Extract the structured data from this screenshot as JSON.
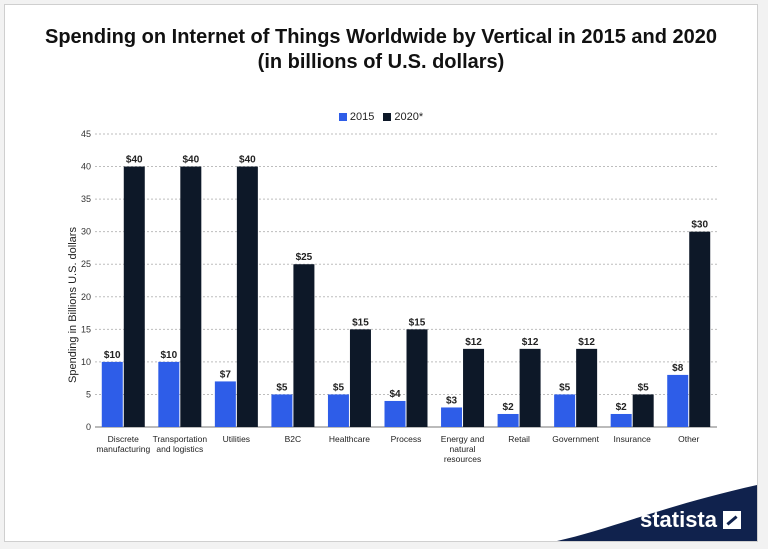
{
  "title_line1": "Spending on Internet of Things Worldwide by Vertical in 2015 and 2020",
  "title_line2": "(in billions of U.S. dollars)",
  "brand": "statista",
  "colors": {
    "series_2015": "#2e5de8",
    "series_2020": "#0d1828",
    "brand_band": "#10224d"
  },
  "icons": {
    "brand_logo": "statista-logo-icon"
  },
  "chart_data": {
    "type": "bar",
    "title": "Spending on Internet of Things Worldwide by Vertical in 2015 and 2020 (in billions of U.S. dollars)",
    "ylabel": "Spending in Billions U.S. dollars",
    "xlabel": "",
    "ylim": [
      0,
      45
    ],
    "yticks": [
      0,
      5,
      10,
      15,
      20,
      25,
      30,
      35,
      40,
      45
    ],
    "grid": true,
    "legend": "top-center",
    "categories": [
      "Discrete manufacturing",
      "Transportation and logistics",
      "Utilities",
      "B2C",
      "Healthcare",
      "Process",
      "Energy and natural resources",
      "Retail",
      "Government",
      "Insurance",
      "Other"
    ],
    "category_lines": [
      [
        "Discrete",
        "manufacturing"
      ],
      [
        "Transportation",
        "and logistics"
      ],
      [
        "Utilities"
      ],
      [
        "B2C"
      ],
      [
        "Healthcare"
      ],
      [
        "Process"
      ],
      [
        "Energy and",
        "natural",
        "resources"
      ],
      [
        "Retail"
      ],
      [
        "Government"
      ],
      [
        "Insurance"
      ],
      [
        "Other"
      ]
    ],
    "series": [
      {
        "name": "2015",
        "values": [
          10,
          10,
          7,
          5,
          5,
          4,
          3,
          2,
          5,
          2,
          8
        ],
        "labels": [
          "$10",
          "$10",
          "$7",
          "$5",
          "$5",
          "$4",
          "$3",
          "$2",
          "$5",
          "$2",
          "$8"
        ]
      },
      {
        "name": "2020*",
        "values": [
          40,
          40,
          40,
          25,
          15,
          15,
          12,
          12,
          12,
          5,
          30
        ],
        "labels": [
          "$40",
          "$40",
          "$40",
          "$25",
          "$15",
          "$15",
          "$12",
          "$12",
          "$12",
          "$5",
          "$30"
        ]
      }
    ]
  }
}
